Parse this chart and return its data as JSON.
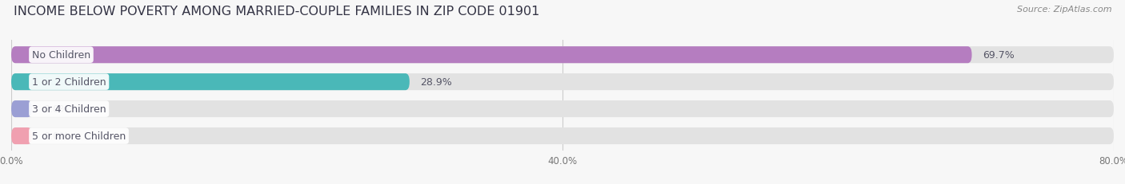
{
  "title": "INCOME BELOW POVERTY AMONG MARRIED-COUPLE FAMILIES IN ZIP CODE 01901",
  "source": "Source: ZipAtlas.com",
  "categories": [
    "No Children",
    "1 or 2 Children",
    "3 or 4 Children",
    "5 or more Children"
  ],
  "values": [
    69.7,
    28.9,
    0.0,
    0.0
  ],
  "bar_colors": [
    "#b57dc0",
    "#4ab8b8",
    "#9b9fd4",
    "#f0a0b0"
  ],
  "xlim": [
    0,
    80
  ],
  "xticks": [
    0.0,
    40.0,
    80.0
  ],
  "xtick_labels": [
    "0.0%",
    "40.0%",
    "80.0%"
  ],
  "title_fontsize": 11.5,
  "source_fontsize": 8,
  "bar_label_fontsize": 9,
  "category_fontsize": 9,
  "background_color": "#f7f7f7",
  "bar_bg_color": "#e2e2e2",
  "text_color": "#555566",
  "label_text_color": "#555566"
}
